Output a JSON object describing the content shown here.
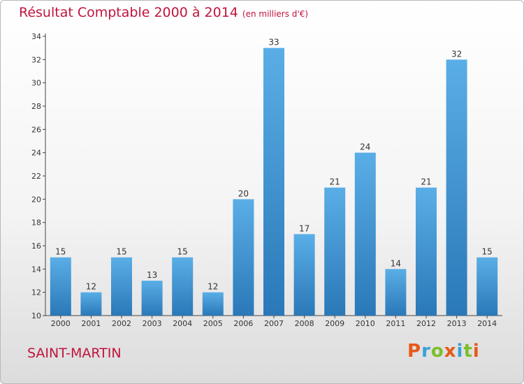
{
  "header": {
    "title": "Résultat Comptable 2000 à 2014",
    "unit": "(en milliers d'€)"
  },
  "footer": {
    "commune": "SAINT-MARTIN",
    "logo": [
      "P",
      "r",
      "o",
      "x",
      "i",
      "t",
      "i"
    ]
  },
  "colors": {
    "accent_text": "#c0143c",
    "bar_light": "#5aaee6",
    "bar_dark": "#2a78b8",
    "logo": [
      "#e8591a",
      "#3aa0d8",
      "#7bbf2a",
      "#e8591a",
      "#3aa0d8",
      "#7bbf2a",
      "#e8591a"
    ]
  },
  "chart_data": {
    "type": "bar",
    "title": "Résultat Comptable 2000 à 2014",
    "subtitle": "(en milliers d'€)",
    "xlabel": "",
    "ylabel": "",
    "categories": [
      "2000",
      "2001",
      "2002",
      "2003",
      "2004",
      "2005",
      "2006",
      "2007",
      "2008",
      "2009",
      "2010",
      "2011",
      "2012",
      "2013",
      "2014"
    ],
    "values": [
      15,
      12,
      15,
      13,
      15,
      12,
      20,
      33,
      17,
      21,
      24,
      14,
      21,
      32,
      15
    ],
    "ylim": [
      10,
      34
    ],
    "yticks": [
      10,
      12,
      14,
      16,
      18,
      20,
      22,
      24,
      26,
      28,
      30,
      32,
      34
    ],
    "grid": false,
    "legend": "none"
  }
}
